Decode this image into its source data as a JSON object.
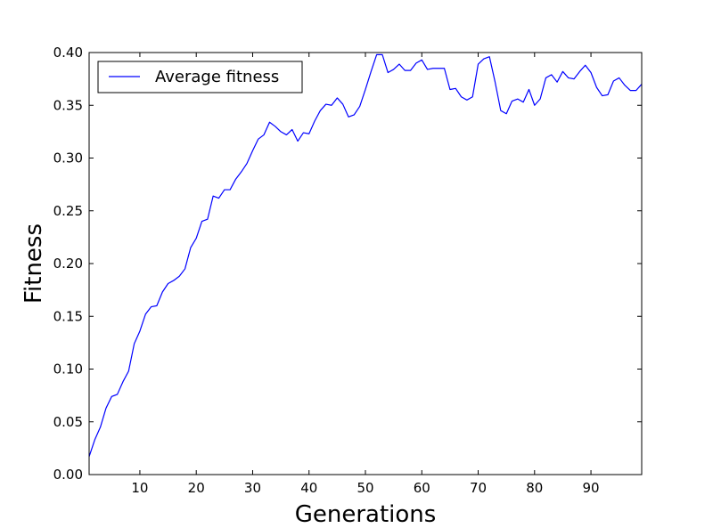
{
  "chart_data": {
    "type": "line",
    "title": "",
    "xlabel": "Generations",
    "ylabel": "Fitness",
    "xlim": [
      1,
      99
    ],
    "ylim": [
      0.0,
      0.4
    ],
    "xticks": [
      10,
      20,
      30,
      40,
      50,
      60,
      70,
      80,
      90
    ],
    "yticks": [
      0.0,
      0.05,
      0.1,
      0.15,
      0.2,
      0.25,
      0.3,
      0.35,
      0.4
    ],
    "yticklabels": [
      "0.00",
      "0.05",
      "0.10",
      "0.15",
      "0.20",
      "0.25",
      "0.30",
      "0.35",
      "0.40"
    ],
    "grid": false,
    "legend_position": "top-left",
    "series": [
      {
        "name": "Average fitness",
        "color": "#0000ff",
        "x": [
          1,
          2,
          3,
          4,
          5,
          6,
          7,
          8,
          9,
          10,
          11,
          12,
          13,
          14,
          15,
          16,
          17,
          18,
          19,
          20,
          21,
          22,
          23,
          24,
          25,
          26,
          27,
          28,
          29,
          30,
          31,
          32,
          33,
          34,
          35,
          36,
          37,
          38,
          39,
          40,
          41,
          42,
          43,
          44,
          45,
          46,
          47,
          48,
          49,
          50,
          51,
          52,
          53,
          54,
          55,
          56,
          57,
          58,
          59,
          60,
          61,
          62,
          63,
          64,
          65,
          66,
          67,
          68,
          69,
          70,
          71,
          72,
          73,
          74,
          75,
          76,
          77,
          78,
          79,
          80,
          81,
          82,
          83,
          84,
          85,
          86,
          87,
          88,
          89,
          90,
          91,
          92,
          93,
          94,
          95,
          96,
          97,
          98,
          99
        ],
        "y": [
          0.017,
          0.033,
          0.045,
          0.063,
          0.074,
          0.076,
          0.088,
          0.098,
          0.124,
          0.136,
          0.152,
          0.159,
          0.16,
          0.173,
          0.181,
          0.184,
          0.188,
          0.195,
          0.215,
          0.224,
          0.24,
          0.242,
          0.264,
          0.262,
          0.27,
          0.27,
          0.28,
          0.287,
          0.295,
          0.307,
          0.318,
          0.322,
          0.334,
          0.33,
          0.325,
          0.322,
          0.327,
          0.316,
          0.324,
          0.323,
          0.335,
          0.345,
          0.351,
          0.35,
          0.357,
          0.351,
          0.339,
          0.341,
          0.349,
          0.365,
          0.382,
          0.398,
          0.398,
          0.381,
          0.384,
          0.389,
          0.383,
          0.383,
          0.39,
          0.393,
          0.384,
          0.385,
          0.385,
          0.385,
          0.365,
          0.366,
          0.358,
          0.355,
          0.358,
          0.389,
          0.394,
          0.396,
          0.372,
          0.345,
          0.342,
          0.354,
          0.356,
          0.353,
          0.365,
          0.35,
          0.356,
          0.376,
          0.379,
          0.372,
          0.382,
          0.376,
          0.375,
          0.382,
          0.388,
          0.381,
          0.367,
          0.359,
          0.36,
          0.373,
          0.376,
          0.369,
          0.364,
          0.364,
          0.37
        ]
      }
    ]
  }
}
